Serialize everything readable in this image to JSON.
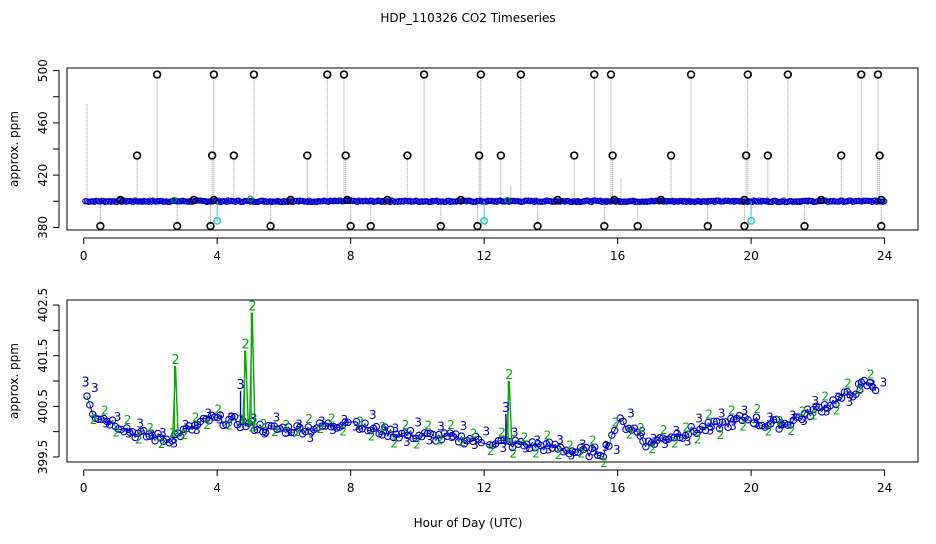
{
  "chart_data": {
    "type": "scatter",
    "title": "HDP_110326  CO2 Timeseries",
    "xlabel": "Hour of Day (UTC)",
    "colors": {
      "blue": "#0000cc",
      "green": "#00aa00",
      "cyan": "#33cccc",
      "gray": "#9a9a9a",
      "black": "#000000"
    },
    "panels": [
      {
        "ylabel": "approx. ppm",
        "xlim": [
          -0.5,
          25
        ],
        "ylim": [
          378,
          502
        ],
        "xticks": [
          "0",
          "4",
          "8",
          "12",
          "16",
          "20",
          "24"
        ],
        "yticks": [
          "380",
          "420",
          "460",
          "500"
        ],
        "baseline": 400,
        "spikes_high": [
          [
            1.6,
            435
          ],
          [
            2.2,
            497
          ],
          [
            3.9,
            497
          ],
          [
            3.85,
            435
          ],
          [
            4.5,
            435
          ],
          [
            5.1,
            497
          ],
          [
            6.7,
            435
          ],
          [
            7.3,
            497
          ],
          [
            7.8,
            497
          ],
          [
            7.85,
            435
          ],
          [
            9.7,
            435
          ],
          [
            10.2,
            497
          ],
          [
            11.85,
            435
          ],
          [
            11.9,
            497
          ],
          [
            12.5,
            435
          ],
          [
            13.1,
            497
          ],
          [
            14.7,
            435
          ],
          [
            15.3,
            497
          ],
          [
            15.8,
            497
          ],
          [
            15.85,
            435
          ],
          [
            17.6,
            435
          ],
          [
            18.2,
            497
          ],
          [
            19.9,
            497
          ],
          [
            19.85,
            435
          ],
          [
            20.5,
            435
          ],
          [
            21.1,
            497
          ],
          [
            22.7,
            435
          ],
          [
            23.3,
            497
          ],
          [
            23.8,
            497
          ],
          [
            23.85,
            435
          ]
        ],
        "spikes_low": [
          [
            0.5,
            381
          ],
          [
            2.8,
            381
          ],
          [
            3.8,
            381
          ],
          [
            5.6,
            381
          ],
          [
            8.0,
            381
          ],
          [
            8.6,
            381
          ],
          [
            10.7,
            381
          ],
          [
            11.8,
            381
          ],
          [
            13.6,
            381
          ],
          [
            15.6,
            381
          ],
          [
            16.6,
            381
          ],
          [
            18.7,
            381
          ],
          [
            19.8,
            381
          ],
          [
            21.6,
            381
          ],
          [
            23.9,
            381
          ]
        ],
        "side_points": [
          [
            1.1,
            401
          ],
          [
            3.3,
            401
          ],
          [
            3.9,
            401
          ],
          [
            6.2,
            401
          ],
          [
            7.9,
            401
          ],
          [
            9.1,
            401
          ],
          [
            11.3,
            401
          ],
          [
            14.2,
            401
          ],
          [
            15.9,
            401
          ],
          [
            17.3,
            401
          ],
          [
            19.8,
            401
          ],
          [
            22.1,
            401
          ],
          [
            23.9,
            401
          ]
        ],
        "cyan_points": [
          [
            4.0,
            385
          ],
          [
            12.0,
            385
          ],
          [
            20.0,
            385
          ]
        ],
        "thin_lines": [
          [
            0.1,
            475
          ],
          [
            12.8,
            412
          ],
          [
            16.1,
            418
          ],
          [
            20.1,
            402
          ]
        ]
      },
      {
        "ylabel": "approx. ppm",
        "xlim": [
          -0.5,
          25
        ],
        "ylim": [
          399.4,
          402.6
        ],
        "xticks": [
          "0",
          "4",
          "8",
          "12",
          "16",
          "20",
          "24"
        ],
        "yticks": [
          "399.5",
          "400.5",
          "401.5",
          "402.5"
        ],
        "series_anchor": [
          [
            0.05,
            400.85
          ],
          [
            0.3,
            400.35
          ],
          [
            1.0,
            400.15
          ],
          [
            1.6,
            399.95
          ],
          [
            2.5,
            399.85
          ],
          [
            3.2,
            400.05
          ],
          [
            3.8,
            400.25
          ],
          [
            4.5,
            400.2
          ],
          [
            5.5,
            400.05
          ],
          [
            6.5,
            400.05
          ],
          [
            7.2,
            400.1
          ],
          [
            7.6,
            400.15
          ],
          [
            8.0,
            400.25
          ],
          [
            8.5,
            400.05
          ],
          [
            9.5,
            399.95
          ],
          [
            10.5,
            399.9
          ],
          [
            11.5,
            399.85
          ],
          [
            12.3,
            399.8
          ],
          [
            13.0,
            399.75
          ],
          [
            14.0,
            399.7
          ],
          [
            14.8,
            399.6
          ],
          [
            15.6,
            399.6
          ],
          [
            16.0,
            400.2
          ],
          [
            16.5,
            400.05
          ],
          [
            16.9,
            399.75
          ],
          [
            17.5,
            399.9
          ],
          [
            18.5,
            400.05
          ],
          [
            19.5,
            400.2
          ],
          [
            19.95,
            400.3
          ],
          [
            20.3,
            400.15
          ],
          [
            21.0,
            400.15
          ],
          [
            22.0,
            400.45
          ],
          [
            23.0,
            400.75
          ],
          [
            23.4,
            400.95
          ],
          [
            23.8,
            400.85
          ]
        ],
        "green_spikes": [
          [
            2.75,
            401.3
          ],
          [
            4.85,
            401.6
          ],
          [
            5.05,
            402.35
          ],
          [
            12.75,
            401.0
          ]
        ],
        "blue_spikes": [
          [
            0.05,
            400.85
          ],
          [
            4.7,
            400.8
          ],
          [
            12.65,
            400.35
          ]
        ],
        "label_blue": "3",
        "label_green": "2"
      }
    ]
  }
}
